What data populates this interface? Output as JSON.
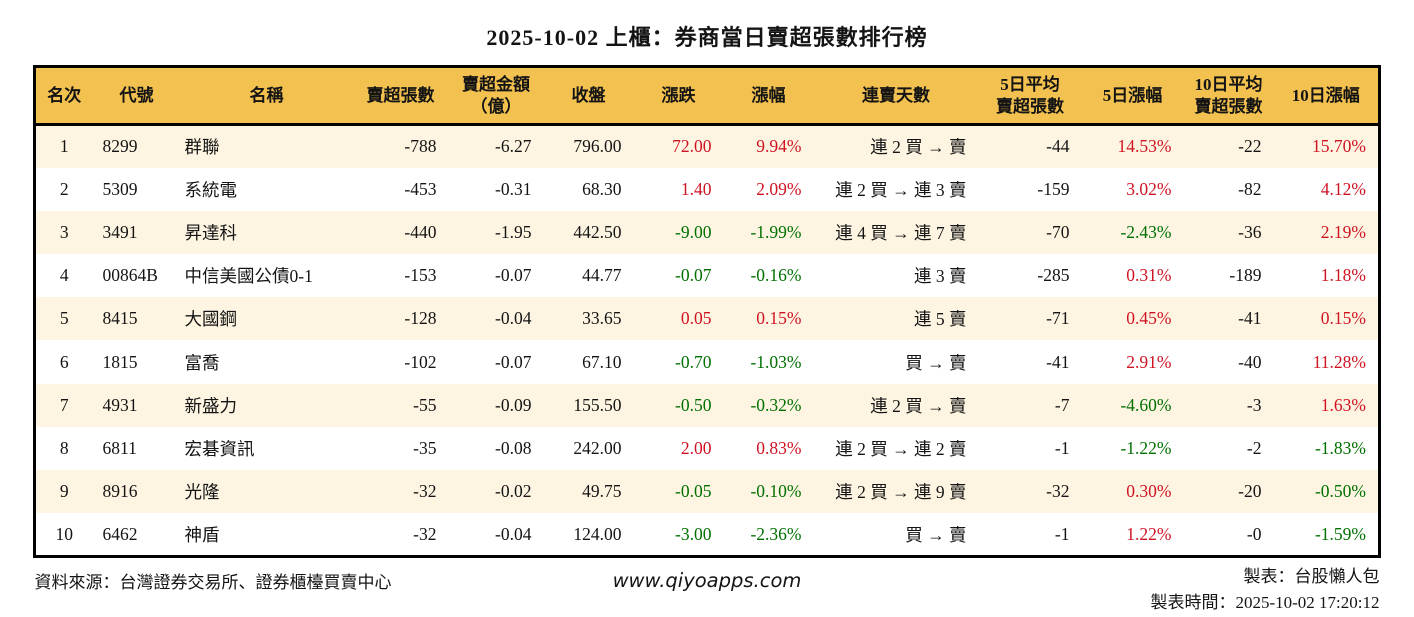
{
  "title": "2025-10-02 上櫃：券商當日賣超張數排行榜",
  "colors": {
    "up": "#cf1322",
    "down": "#007000",
    "header_bg": "#f3c14f",
    "row_alt_bg": "#fdf5e2"
  },
  "chart_data": {
    "type": "table",
    "title": "2025-10-02 上櫃：券商當日賣超張數排行榜",
    "columns": [
      "名次",
      "代號",
      "名稱",
      "賣超張數",
      "賣超金額\n（億）",
      "收盤",
      "漲跌",
      "漲幅",
      "連賣天數",
      "5日平均\n賣超張數",
      "5日漲幅",
      "10日平均\n賣超張數",
      "10日漲幅"
    ],
    "color_legend": {
      "up": "red means price up",
      "down": "green means price down"
    },
    "rows": [
      {
        "cells": [
          "1",
          "8299",
          "群聯",
          "-788",
          "-6.27",
          "796.00",
          "72.00",
          "9.94%",
          "連 2 買 → 賣",
          "-44",
          "14.53%",
          "-22",
          "15.70%"
        ],
        "colors": {
          "6": "up",
          "7": "up",
          "10": "up",
          "12": "up"
        }
      },
      {
        "cells": [
          "2",
          "5309",
          "系統電",
          "-453",
          "-0.31",
          "68.30",
          "1.40",
          "2.09%",
          "連 2 買 → 連 3 賣",
          "-159",
          "3.02%",
          "-82",
          "4.12%"
        ],
        "colors": {
          "6": "up",
          "7": "up",
          "10": "up",
          "12": "up"
        }
      },
      {
        "cells": [
          "3",
          "3491",
          "昇達科",
          "-440",
          "-1.95",
          "442.50",
          "-9.00",
          "-1.99%",
          "連 4 買 → 連 7 賣",
          "-70",
          "-2.43%",
          "-36",
          "2.19%"
        ],
        "colors": {
          "6": "down",
          "7": "down",
          "10": "down",
          "12": "up"
        }
      },
      {
        "cells": [
          "4",
          "00864B",
          "中信美國公債0-1",
          "-153",
          "-0.07",
          "44.77",
          "-0.07",
          "-0.16%",
          "連 3 賣",
          "-285",
          "0.31%",
          "-189",
          "1.18%"
        ],
        "colors": {
          "6": "down",
          "7": "down",
          "10": "up",
          "12": "up"
        }
      },
      {
        "cells": [
          "5",
          "8415",
          "大國鋼",
          "-128",
          "-0.04",
          "33.65",
          "0.05",
          "0.15%",
          "連 5 賣",
          "-71",
          "0.45%",
          "-41",
          "0.15%"
        ],
        "colors": {
          "6": "up",
          "7": "up",
          "10": "up",
          "12": "up"
        }
      },
      {
        "cells": [
          "6",
          "1815",
          "富喬",
          "-102",
          "-0.07",
          "67.10",
          "-0.70",
          "-1.03%",
          "買 → 賣",
          "-41",
          "2.91%",
          "-40",
          "11.28%"
        ],
        "colors": {
          "6": "down",
          "7": "down",
          "10": "up",
          "12": "up"
        }
      },
      {
        "cells": [
          "7",
          "4931",
          "新盛力",
          "-55",
          "-0.09",
          "155.50",
          "-0.50",
          "-0.32%",
          "連 2 買 → 賣",
          "-7",
          "-4.60%",
          "-3",
          "1.63%"
        ],
        "colors": {
          "6": "down",
          "7": "down",
          "10": "down",
          "12": "up"
        }
      },
      {
        "cells": [
          "8",
          "6811",
          "宏碁資訊",
          "-35",
          "-0.08",
          "242.00",
          "2.00",
          "0.83%",
          "連 2 買 → 連 2 賣",
          "-1",
          "-1.22%",
          "-2",
          "-1.83%"
        ],
        "colors": {
          "6": "up",
          "7": "up",
          "10": "down",
          "12": "down"
        }
      },
      {
        "cells": [
          "9",
          "8916",
          "光隆",
          "-32",
          "-0.02",
          "49.75",
          "-0.05",
          "-0.10%",
          "連 2 買 → 連 9 賣",
          "-32",
          "0.30%",
          "-20",
          "-0.50%"
        ],
        "colors": {
          "6": "down",
          "7": "down",
          "10": "up",
          "12": "down"
        }
      },
      {
        "cells": [
          "10",
          "6462",
          "神盾",
          "-32",
          "-0.04",
          "124.00",
          "-3.00",
          "-2.36%",
          "買 → 賣",
          "-1",
          "1.22%",
          "-0",
          "-1.59%"
        ],
        "colors": {
          "6": "down",
          "7": "down",
          "10": "up",
          "12": "down"
        }
      }
    ]
  },
  "footer": {
    "source": "資料來源：台灣證券交易所、證券櫃檯買賣中心",
    "website": "www.qiyoapps.com",
    "maker": "製表：台股懶人包",
    "time": "製表時間：2025-10-02 17:20:12"
  }
}
